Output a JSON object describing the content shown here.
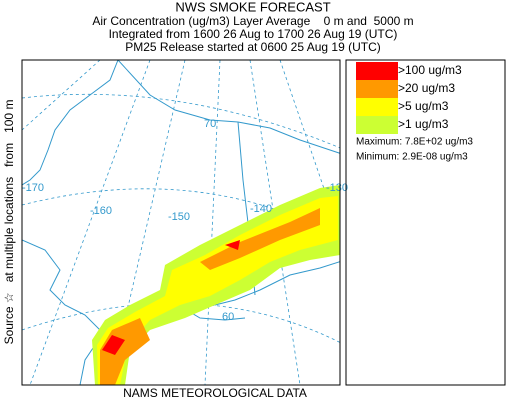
{
  "header": {
    "title": "NWS SMOKE FORECAST",
    "lines": [
      "Air Concentration (ug/m3) Layer Average    0 m and  5000 m",
      "Integrated from 1600 26 Aug to 1700 26 Aug 19 (UTC)",
      "PM25 Release started at 0600 25 Aug 19 (UTC)"
    ]
  },
  "side_label": "Source ☆   at multiple locations   from   100 m",
  "footer": "NAMS METEOROLOGICAL DATA",
  "legend": {
    "items": [
      {
        "label": ">100 ug/m3",
        "color": "#ff0000"
      },
      {
        "label": ">20 ug/m3",
        "color": "#ff9900"
      },
      {
        "label": ">5 ug/m3",
        "color": "#ffff00"
      },
      {
        "label": ">1 ug/m3",
        "color": "#ccff33"
      }
    ],
    "maximum": "Maximum: 7.8E+02 ug/m3",
    "minimum": "Minimum: 2.9E-08 ug/m3"
  },
  "map_labels": {
    "longitudes": [
      "-170",
      "-160",
      "-150",
      "-140",
      "-130"
    ],
    "latitudes": [
      "70",
      "60"
    ]
  }
}
